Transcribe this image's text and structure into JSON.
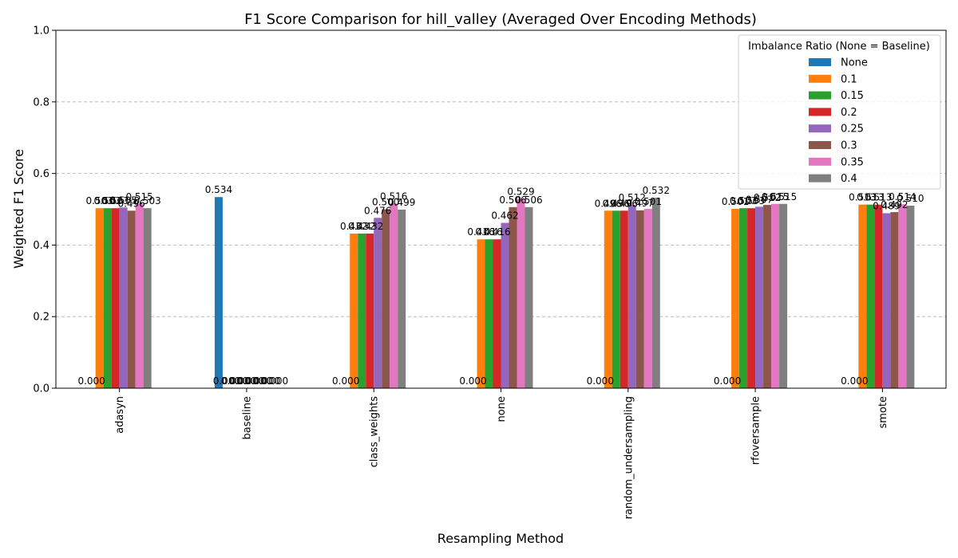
{
  "chart_data": {
    "type": "bar",
    "title": "F1 Score Comparison for hill_valley (Averaged Over Encoding Methods)",
    "xlabel": "Resampling Method",
    "ylabel": "Weighted F1 Score",
    "ylim": [
      0,
      1
    ],
    "yticks": [
      "0.0",
      "0.2",
      "0.4",
      "0.6",
      "0.8",
      "1.0"
    ],
    "grid": "y-dashed",
    "categories": [
      "adasyn",
      "baseline",
      "class_weights",
      "none",
      "random_undersampling",
      "rfoversample",
      "smote"
    ],
    "legend": {
      "title": "Imbalance Ratio (None = Baseline)",
      "placement": "top-right"
    },
    "series": [
      {
        "name": "None",
        "color": "#1f77b4",
        "values": [
          0,
          0.534,
          0,
          0,
          0,
          0,
          0
        ],
        "labels": [
          "0.000",
          "0.534",
          "0.000",
          "0.000",
          "0.000",
          "0.000",
          "0.000"
        ]
      },
      {
        "name": "0.1",
        "color": "#ff7f0e",
        "values": [
          0.503,
          0,
          0.432,
          0.416,
          0.496,
          0.501,
          0.513
        ],
        "labels": [
          "0.503",
          "0.000",
          "0.432",
          "0.416",
          "0.496",
          "0.501",
          "0.513"
        ]
      },
      {
        "name": "0.15",
        "color": "#2ca02c",
        "values": [
          0.503,
          0,
          0.432,
          0.416,
          0.496,
          0.503,
          0.513
        ],
        "labels": [
          "0.503",
          "0.000",
          "0.432",
          "0.416",
          "0.496",
          "0.503",
          "0.513"
        ]
      },
      {
        "name": "0.2",
        "color": "#d62728",
        "values": [
          0.503,
          0,
          0.432,
          0.416,
          0.496,
          0.503,
          0.513
        ],
        "labels": [
          "0.503",
          "0.000",
          "0.432",
          "0.416",
          "0.496",
          "0.503",
          "0.513"
        ]
      },
      {
        "name": "0.25",
        "color": "#9467bd",
        "values": [
          0.505,
          0,
          0.476,
          0.462,
          0.512,
          0.507,
          0.489
        ],
        "labels": [
          "0.505",
          "0.000",
          "0.476",
          "0.462",
          "0.512",
          "0.507",
          "0.489"
        ]
      },
      {
        "name": "0.3",
        "color": "#8c564b",
        "values": [
          0.496,
          0,
          0.5,
          0.506,
          0.497,
          0.512,
          0.492
        ],
        "labels": [
          "0.496",
          "0.000",
          "0.500",
          "0.506",
          "0.497",
          "0.512",
          "0.492"
        ]
      },
      {
        "name": "0.35",
        "color": "#e377c2",
        "values": [
          0.515,
          0,
          0.516,
          0.529,
          0.501,
          0.515,
          0.514
        ],
        "labels": [
          "0.515",
          "0.000",
          "0.516",
          "0.529",
          "0.501",
          "0.515",
          "0.514"
        ]
      },
      {
        "name": "0.4",
        "color": "#7f7f7f",
        "values": [
          0.503,
          0,
          0.499,
          0.506,
          0.532,
          0.515,
          0.51
        ],
        "labels": [
          "0.503",
          "0.000",
          "0.499",
          "0.506",
          "0.532",
          "0.515",
          "0.510"
        ]
      }
    ]
  }
}
